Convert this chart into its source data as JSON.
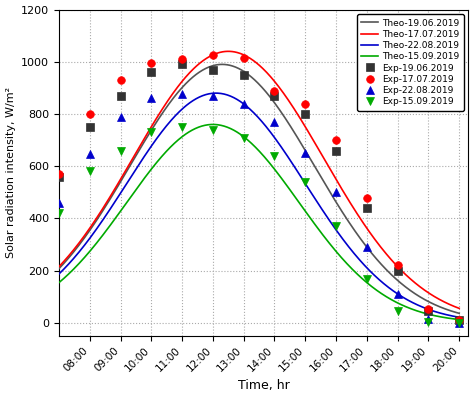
{
  "xlabel": "Time, hr",
  "ylabel": "Solar radiation intensity, W/m²",
  "ylim": [
    -50,
    1200
  ],
  "yticks": [
    0,
    200,
    400,
    600,
    800,
    1000,
    1200
  ],
  "xtick_labels": [
    "08:00",
    "09:00",
    "10:00",
    "11:00",
    "12:00",
    "13:00",
    "14:00",
    "15:00",
    "16:00",
    "17:00",
    "18:00",
    "19:00",
    "20:00"
  ],
  "xtick_positions": [
    8,
    9,
    10,
    11,
    12,
    13,
    14,
    15,
    16,
    17,
    18,
    19,
    20
  ],
  "hours": [
    7,
    8,
    9,
    10,
    11,
    12,
    13,
    14,
    15,
    16,
    17,
    18,
    19,
    20
  ],
  "exp_19jun": [
    560,
    750,
    870,
    960,
    990,
    970,
    950,
    870,
    800,
    660,
    440,
    200,
    45,
    10
  ],
  "exp_17jul": [
    570,
    800,
    930,
    995,
    1010,
    1025,
    1015,
    890,
    840,
    700,
    480,
    220,
    55,
    10
  ],
  "exp_22aug": [
    460,
    645,
    790,
    860,
    875,
    870,
    840,
    770,
    650,
    500,
    290,
    110,
    15,
    0
  ],
  "exp_15sep": [
    420,
    580,
    660,
    730,
    750,
    740,
    710,
    640,
    540,
    370,
    170,
    45,
    5,
    0
  ],
  "theo_19jun_params": [
    12.3,
    990,
    3.0
  ],
  "theo_17jul_params": [
    12.5,
    1040,
    3.1
  ],
  "theo_22aug_params": [
    12.1,
    880,
    2.9
  ],
  "theo_15sep_params": [
    12.0,
    760,
    2.8
  ],
  "theo_color_19jun": "#555555",
  "theo_color_17jul": "#ff0000",
  "theo_color_22aug": "#0000cc",
  "theo_color_15sep": "#00aa00",
  "exp_color_19jun": "#333333",
  "exp_color_17jul": "#ff0000",
  "exp_color_22aug": "#0000cc",
  "exp_color_15sep": "#00aa00",
  "xlim": [
    7.0,
    20.3
  ]
}
